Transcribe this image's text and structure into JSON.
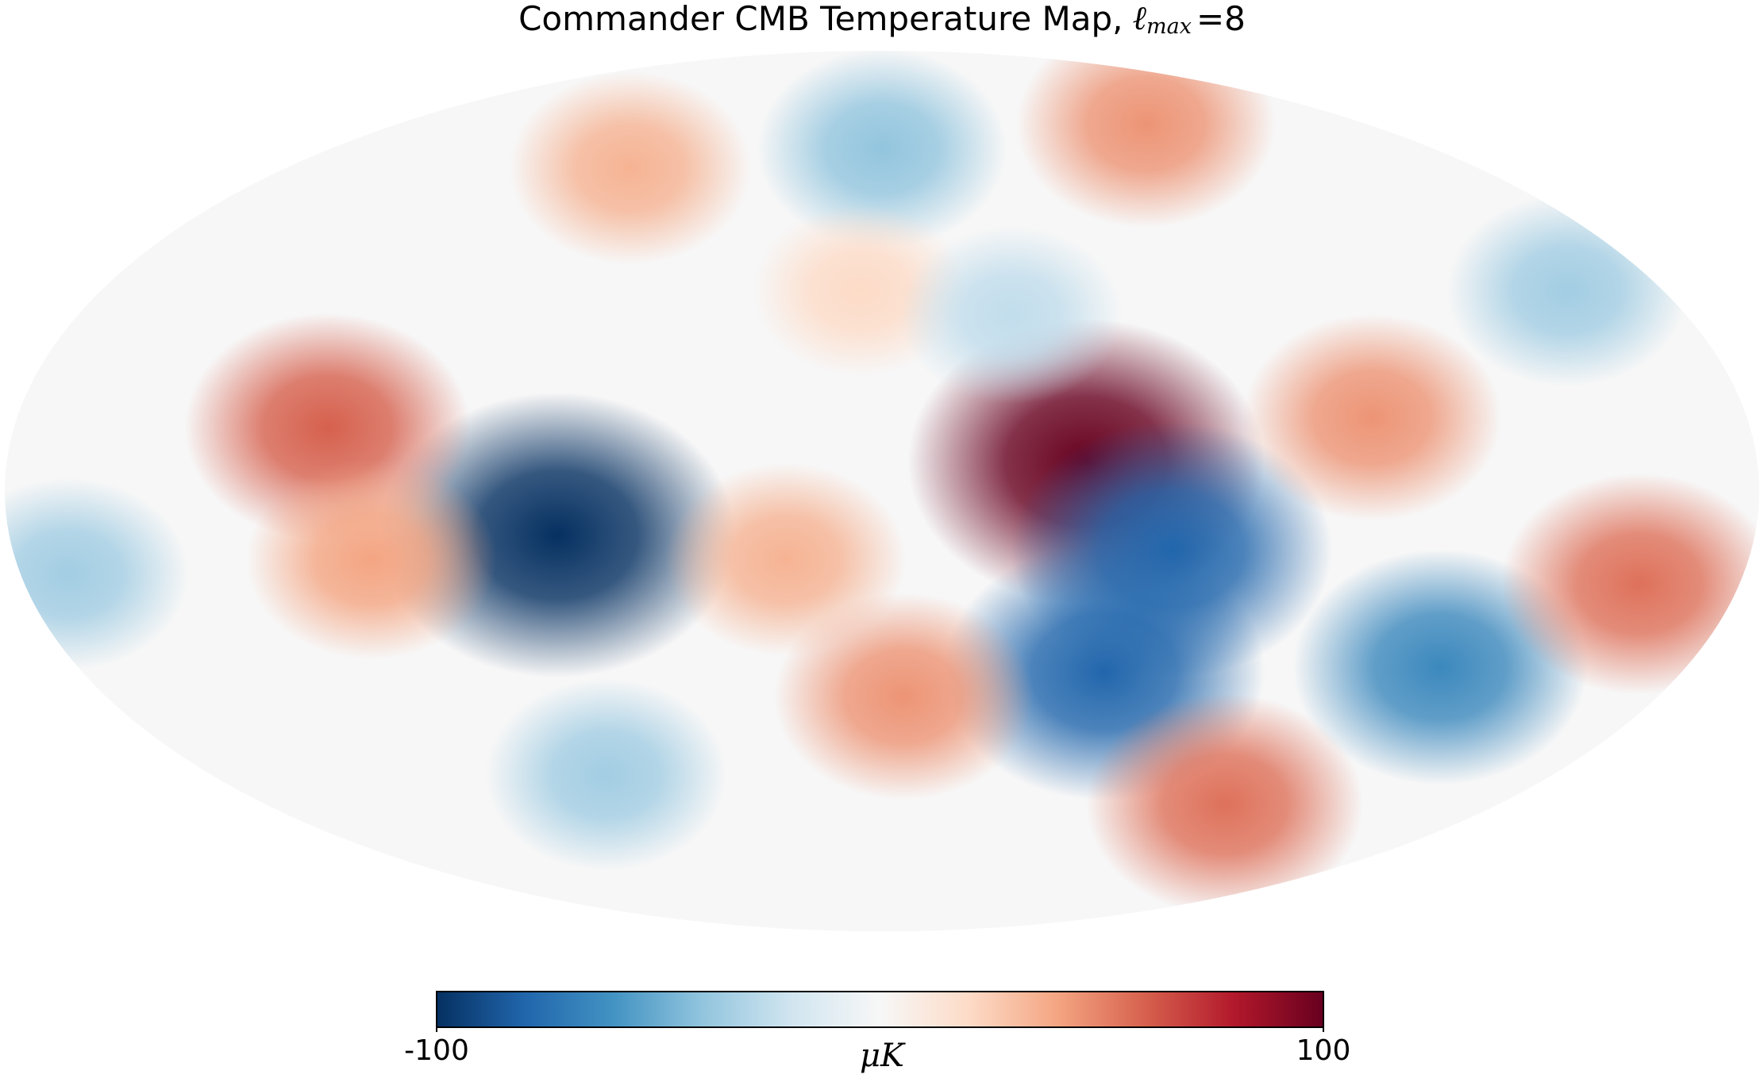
{
  "chart_data": {
    "type": "mollweide-map",
    "title": "Commander CMB Temperature Map,",
    "title_symbol": "ℓ",
    "title_subscript": "max",
    "title_suffix": "=8",
    "colormap": "RdBu_r",
    "colorbar": {
      "lim": [
        -100,
        100
      ],
      "ticks": [
        -100,
        100
      ],
      "label": "μK"
    },
    "features": [
      {
        "lon": 67,
        "lat": -9,
        "value": -100
      },
      {
        "lon": -42,
        "lat": 6,
        "value": 100
      },
      {
        "lon": -60,
        "lat": -12,
        "value": -80
      },
      {
        "lon": -50,
        "lat": -37,
        "value": -80
      },
      {
        "lon": -125,
        "lat": -36,
        "value": -65
      },
      {
        "lon": 115,
        "lat": 13,
        "value": 60
      },
      {
        "lon": 106,
        "lat": -14,
        "value": 40
      },
      {
        "lon": 0,
        "lat": 70,
        "value": -40
      },
      {
        "lon": 5,
        "lat": 41,
        "value": 20
      },
      {
        "lon": -5,
        "lat": -42,
        "value": 45
      },
      {
        "lon": -100,
        "lat": -64,
        "value": 55
      },
      {
        "lon": -159,
        "lat": -19,
        "value": 55
      },
      {
        "lon": -102,
        "lat": 15,
        "value": 45
      },
      {
        "lon": -158,
        "lat": 41,
        "value": -35
      },
      {
        "lon": 170,
        "lat": -17,
        "value": -35
      },
      {
        "lon": -98,
        "lat": 75,
        "value": 45
      },
      {
        "lon": 76,
        "lat": 66,
        "value": 35
      },
      {
        "lon": 74,
        "lat": -58,
        "value": -35
      },
      {
        "lon": -29,
        "lat": 36,
        "value": -25
      },
      {
        "lon": 20,
        "lat": -14,
        "value": 35
      }
    ]
  }
}
